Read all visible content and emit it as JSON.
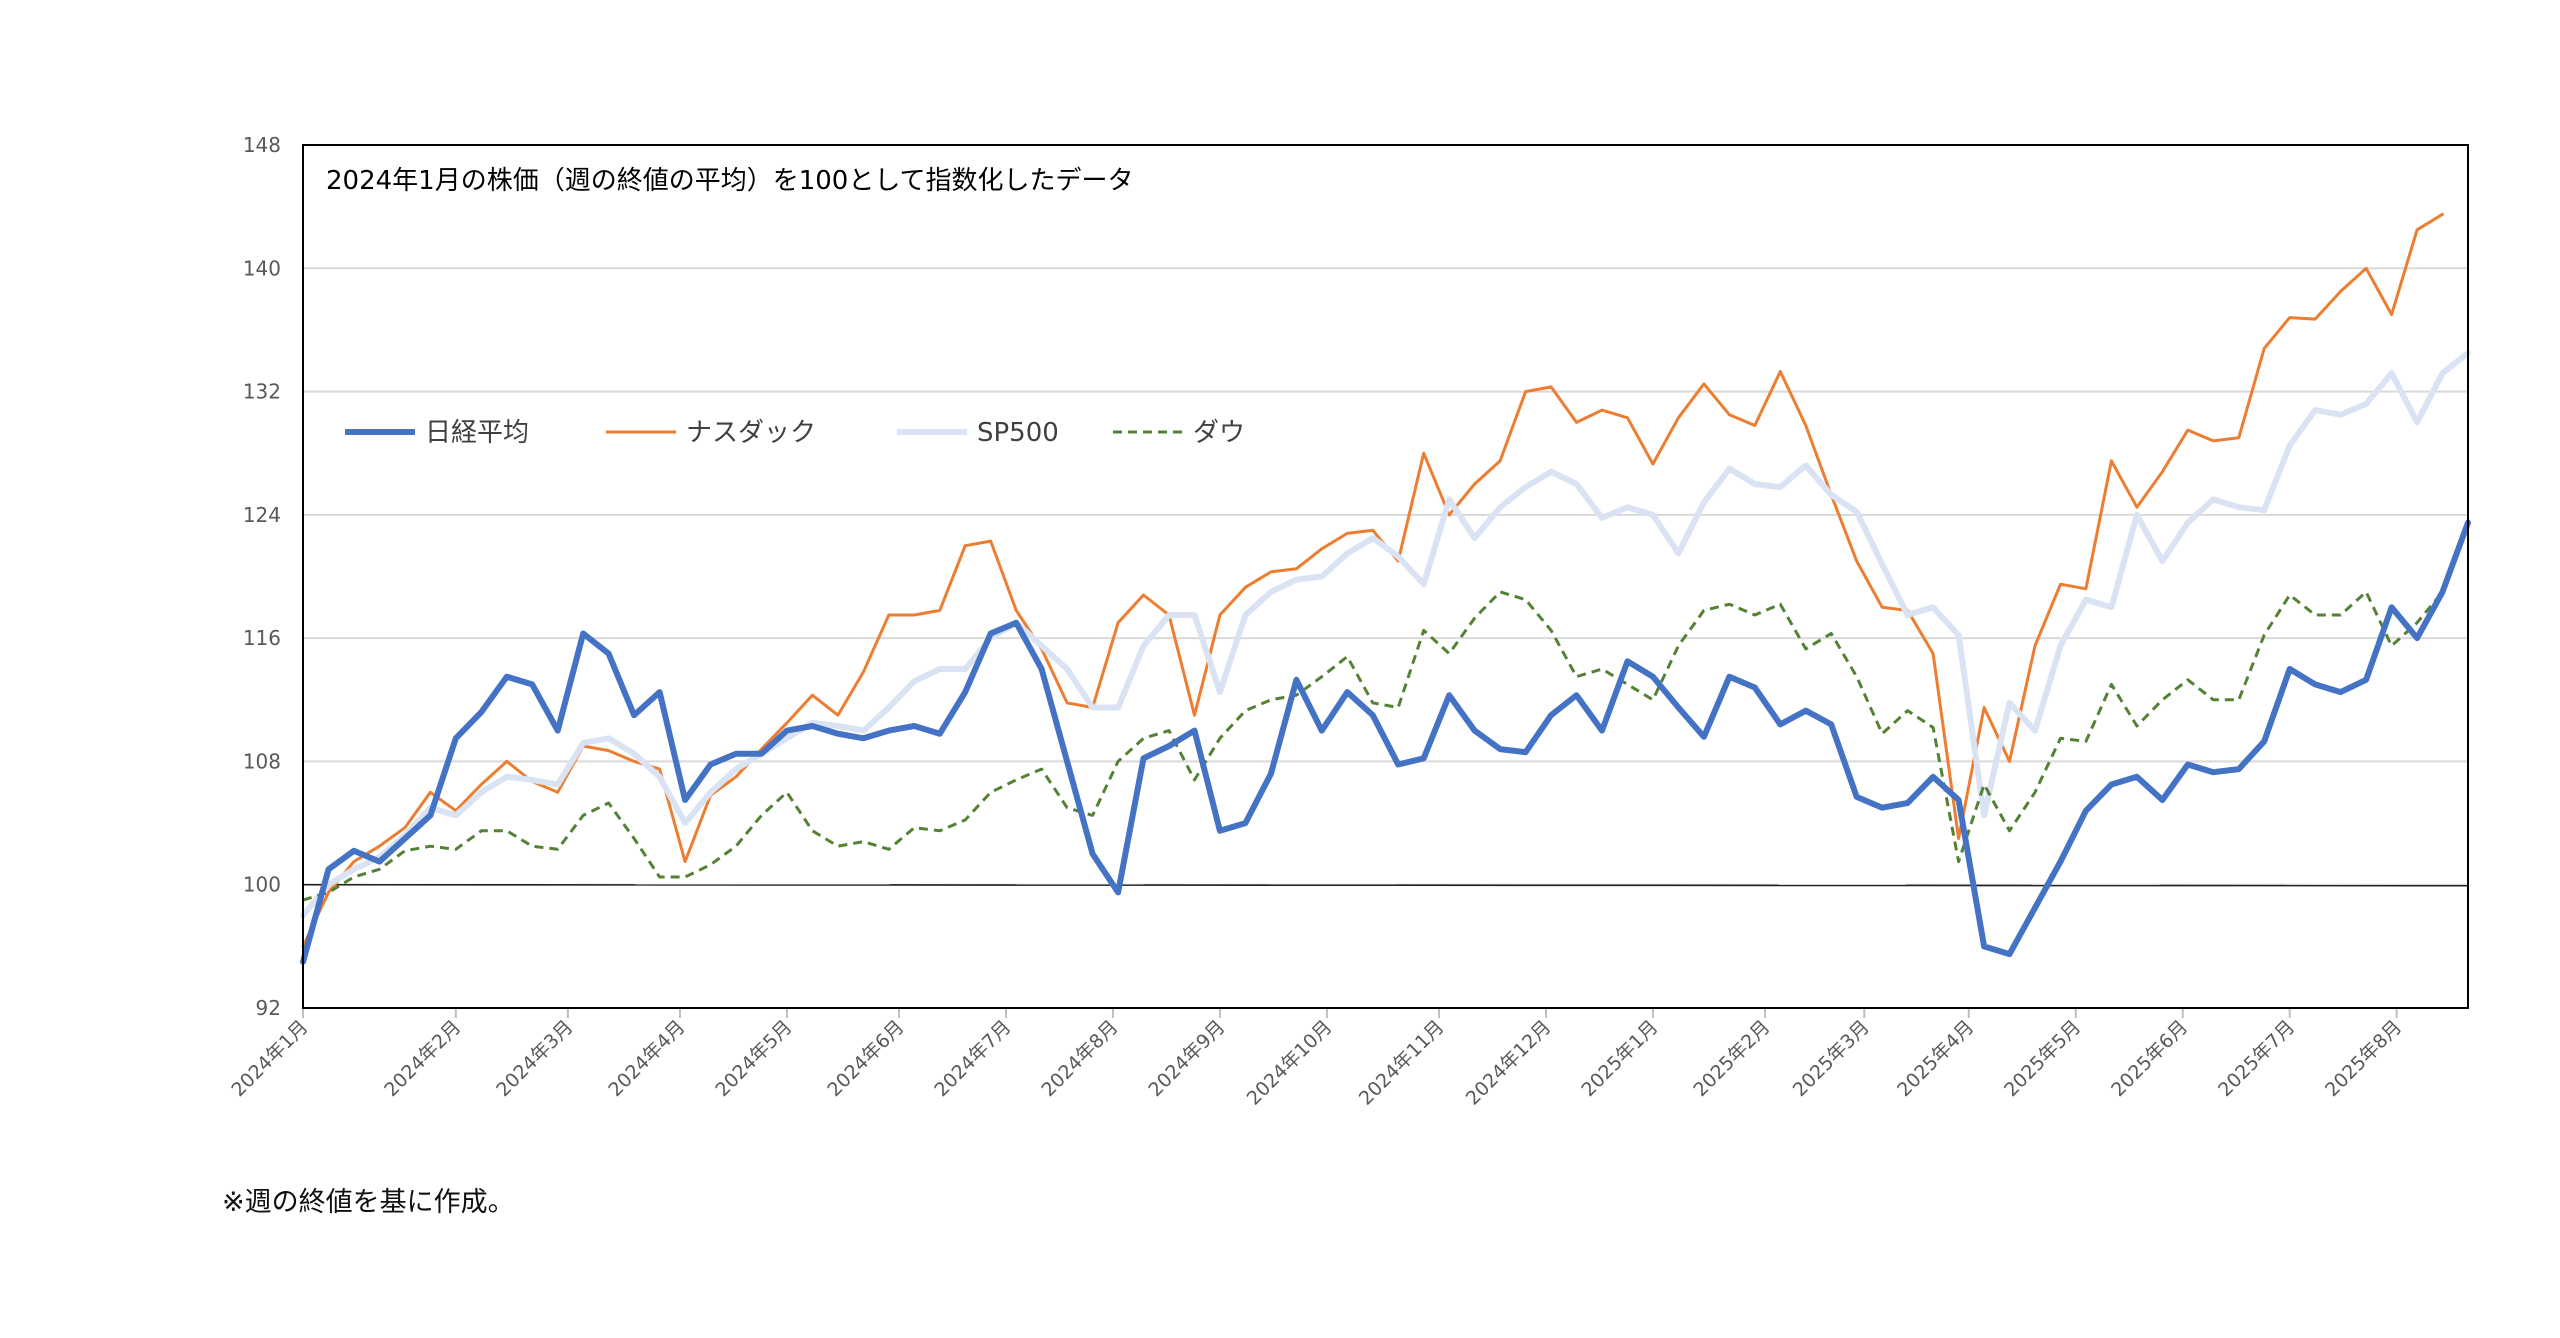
{
  "chart_data": {
    "type": "line",
    "title": "2024年1月の株価（週の終値の平均）を100として指数化したデータ",
    "xlabel": "",
    "ylabel": "",
    "ylim": [
      92,
      148
    ],
    "yticks": [
      92,
      100,
      108,
      116,
      124,
      132,
      140,
      148
    ],
    "grid": true,
    "legend_position": "upper-left",
    "baseline": 100,
    "month_labels": [
      "2024年1月",
      "2024年2月",
      "2024年3月",
      "2024年4月",
      "2024年5月",
      "2024年6月",
      "2024年7月",
      "2024年8月",
      "2024年9月",
      "2024年10月",
      "2024年11月",
      "2024年12月",
      "2025年1月",
      "2025年2月",
      "2025年3月",
      "2025年4月",
      "2025年5月",
      "2025年6月",
      "2025年7月",
      "2025年8月"
    ],
    "month_week_index": [
      0,
      6,
      10.4,
      14.8,
      19,
      23.4,
      27.6,
      31.8,
      36,
      40.2,
      44.6,
      48.8,
      53,
      57.4,
      61.3,
      65.4,
      69.6,
      73.8,
      78,
      82.2
    ],
    "series": [
      {
        "name": "日経平均",
        "color": "#4472C4",
        "width": 6,
        "dash": "",
        "values": [
          95,
          101,
          102.2,
          101.5,
          103,
          104.5,
          109.5,
          111.2,
          113.5,
          113,
          110,
          116.3,
          115,
          111,
          112.5,
          105.5,
          107.8,
          108.5,
          108.5,
          110,
          110.3,
          109.8,
          109.5,
          110,
          110.3,
          109.8,
          112.5,
          116.3,
          117,
          114,
          108,
          102,
          99.5,
          108.2,
          109,
          110,
          103.5,
          104,
          107.2,
          113.3,
          110,
          112.5,
          111,
          107.8,
          108.2,
          112.3,
          110,
          108.8,
          108.6,
          111,
          112.3,
          110,
          114.5,
          113.5,
          111.5,
          109.6,
          113.5,
          112.8,
          110.4,
          111.3,
          110.4,
          105.7,
          105,
          105.3,
          107,
          105.5,
          96,
          95.5,
          98.5,
          101.5,
          104.8,
          106.5,
          107,
          105.5,
          107.8,
          107.3,
          107.5,
          109.3,
          114,
          113,
          112.5,
          113.3,
          118,
          116,
          119,
          123.5
        ]
      },
      {
        "name": "ナスダック",
        "color": "#ED7D31",
        "width": 3,
        "dash": "",
        "values": [
          96,
          99.5,
          101.5,
          102.5,
          103.7,
          106,
          104.8,
          106.5,
          108,
          106.7,
          106,
          109,
          108.7,
          108,
          107.5,
          101.5,
          105.8,
          107,
          108.8,
          110.5,
          112.3,
          111,
          113.8,
          117.5,
          117.5,
          117.8,
          122,
          122.3,
          117.8,
          115.3,
          111.8,
          111.5,
          117,
          118.8,
          117.5,
          111,
          117.5,
          119.3,
          120.3,
          120.5,
          121.8,
          122.8,
          123,
          121,
          128,
          124,
          126,
          127.5,
          132,
          132.3,
          130,
          130.8,
          130.3,
          127.3,
          130.3,
          132.5,
          130.5,
          129.8,
          133.3,
          129.8,
          125.3,
          121,
          118,
          117.8,
          115,
          103,
          111.5,
          108,
          115.5,
          119.5,
          119.2,
          127.5,
          124.5,
          126.8,
          129.5,
          128.8,
          129,
          134.8,
          136.8,
          136.7,
          138.5,
          140,
          137,
          142.5,
          143.5
        ]
      },
      {
        "name": "SP500",
        "color": "#DAE3F3",
        "width": 6,
        "dash": "",
        "values": [
          98,
          100,
          101,
          101.8,
          103.2,
          105,
          104.5,
          106,
          107,
          106.8,
          106.5,
          109.2,
          109.5,
          108.5,
          107,
          104,
          106,
          107.5,
          108.5,
          109.5,
          110.5,
          110.3,
          110,
          111.5,
          113.2,
          114,
          114,
          116,
          117,
          115.5,
          114,
          111.5,
          111.5,
          115.5,
          117.5,
          117.5,
          112.5,
          117.5,
          119,
          119.8,
          120,
          121.5,
          122.5,
          121.3,
          119.5,
          125,
          122.5,
          124.5,
          125.8,
          126.8,
          126,
          123.8,
          124.5,
          124,
          121.5,
          124.8,
          127,
          126,
          125.8,
          127.2,
          125.3,
          124.2,
          120.8,
          117.5,
          118,
          116.2,
          104.5,
          111.8,
          110,
          115.5,
          118.5,
          118,
          124,
          121,
          123.5,
          125,
          124.5,
          124.3,
          128.5,
          130.8,
          130.5,
          131.2,
          133.2,
          130,
          133.2,
          134.5
        ]
      },
      {
        "name": "ダウ",
        "color": "#548235",
        "width": 3,
        "dash": "9 6",
        "values": [
          99,
          99.5,
          100.5,
          101,
          102.2,
          102.5,
          102.3,
          103.5,
          103.5,
          102.5,
          102.3,
          104.5,
          105.3,
          103,
          100.5,
          100.5,
          101.3,
          102.5,
          104.5,
          106,
          103.5,
          102.5,
          102.8,
          102.3,
          103.7,
          103.5,
          104.2,
          106,
          106.8,
          107.5,
          105,
          104.5,
          108,
          109.5,
          110,
          106.8,
          109.5,
          111.3,
          112,
          112.3,
          113.5,
          114.8,
          111.8,
          111.5,
          116.5,
          115,
          117.3,
          119,
          118.5,
          116.5,
          113.5,
          114,
          113,
          112,
          115.5,
          117.8,
          118.2,
          117.5,
          118.2,
          115.3,
          116.3,
          113.5,
          109.8,
          111.3,
          110.2,
          101.5,
          106.5,
          103.5,
          106,
          109.5,
          109.3,
          113,
          110.3,
          112,
          113.3,
          112,
          112,
          116.2,
          118.8,
          117.5,
          117.5,
          119,
          115.5,
          117,
          119
        ]
      }
    ]
  },
  "footnote": "※週の終値を基に作成。"
}
